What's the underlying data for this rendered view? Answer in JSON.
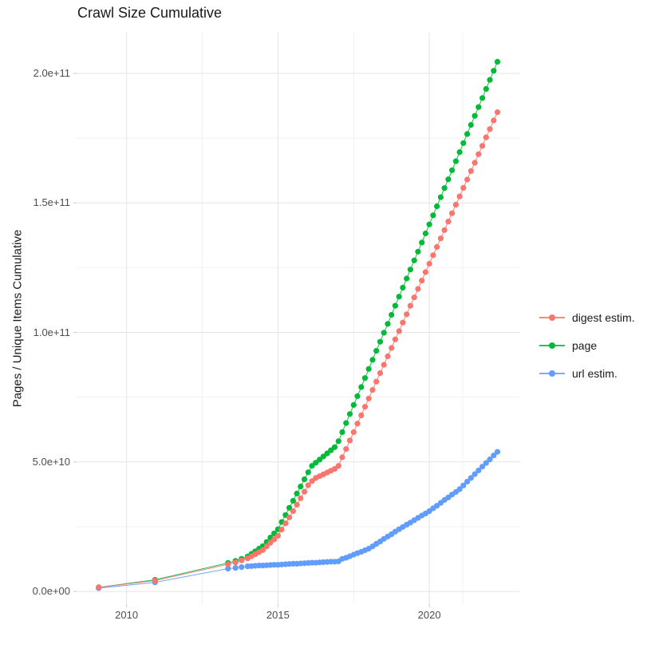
{
  "title": "Crawl Size Cumulative",
  "y_axis_title": "Pages / Unique Items Cumulative",
  "chart_data": {
    "type": "line",
    "note": "cumulative crawl size; y values stored in billions (1e9 items)",
    "y_unit_multiplier": 1000000000,
    "x": [
      2009.08,
      2010.94,
      2013.35,
      2013.6,
      2013.8,
      2014,
      2014.125,
      2014.25,
      2014.375,
      2014.5,
      2014.625,
      2014.75,
      2014.875,
      2015,
      2015.125,
      2015.25,
      2015.375,
      2015.5,
      2015.625,
      2015.75,
      2015.875,
      2016,
      2016.125,
      2016.25,
      2016.375,
      2016.5,
      2016.625,
      2016.75,
      2016.875,
      2017,
      2017.125,
      2017.25,
      2017.375,
      2017.5,
      2017.625,
      2017.75,
      2017.875,
      2018,
      2018.125,
      2018.25,
      2018.375,
      2018.5,
      2018.625,
      2018.75,
      2018.875,
      2019,
      2019.125,
      2019.25,
      2019.375,
      2019.5,
      2019.625,
      2019.75,
      2019.875,
      2020,
      2020.125,
      2020.25,
      2020.375,
      2020.5,
      2020.625,
      2020.75,
      2020.875,
      2021,
      2021.125,
      2021.25,
      2021.375,
      2021.5,
      2021.625,
      2021.75,
      2021.875,
      2022,
      2022.125,
      2022.25
    ],
    "series": [
      {
        "name": "digest estim.",
        "color": "#F8766D",
        "values": [
          1.6,
          4.2,
          10.5,
          11.2,
          12,
          12.8,
          13.6,
          14.4,
          15.2,
          16,
          17.4,
          18.8,
          20.1,
          21.5,
          23.9,
          26.3,
          28.6,
          31,
          33.5,
          36,
          38.5,
          41,
          42.6,
          43.8,
          44.5,
          45.2,
          45.9,
          46.6,
          47.3,
          48.5,
          51.8,
          55,
          58.3,
          61.5,
          64.8,
          68,
          71.3,
          74.5,
          77.8,
          81,
          84.3,
          87.5,
          90.8,
          94,
          97.3,
          100.5,
          103.8,
          107,
          110.3,
          113.5,
          116.8,
          120,
          123.3,
          126.5,
          129.8,
          133,
          136.3,
          139.5,
          142.8,
          146,
          149.3,
          152.5,
          155.8,
          159,
          162.3,
          165.5,
          168.8,
          172,
          175.3,
          178.5,
          181.8,
          185
        ]
      },
      {
        "name": "page",
        "color": "#00BA38",
        "values": [
          1.6,
          4.5,
          11,
          11.8,
          12.6,
          13.5,
          14.5,
          15.5,
          16.5,
          17.5,
          19.1,
          20.8,
          22.4,
          24,
          26.8,
          29.5,
          32.3,
          35,
          37.8,
          40.5,
          43.3,
          46,
          48.5,
          49.7,
          50.9,
          52.1,
          53.3,
          54.5,
          55.7,
          58,
          61.5,
          65,
          68.5,
          72,
          75.4,
          78.9,
          82.4,
          85.9,
          89.4,
          92.9,
          96.4,
          99.9,
          103.3,
          106.8,
          110.3,
          113.8,
          117.3,
          120.8,
          124.3,
          127.8,
          131.2,
          134.7,
          138.2,
          141.7,
          145.2,
          148.7,
          152.2,
          155.7,
          159.1,
          162.6,
          166.1,
          169.6,
          173.1,
          176.6,
          180.1,
          183.6,
          187,
          190.5,
          194,
          197.5,
          201,
          204.5
        ]
      },
      {
        "name": "url estim.",
        "color": "#619CFF",
        "values": [
          1.3,
          3.5,
          8.8,
          9.1,
          9.4,
          9.7,
          9.8,
          9.9,
          10,
          10,
          10.1,
          10.2,
          10.3,
          10.3,
          10.4,
          10.5,
          10.6,
          10.7,
          10.7,
          10.8,
          10.9,
          11,
          11.1,
          11.1,
          11.2,
          11.3,
          11.4,
          11.5,
          11.5,
          11.6,
          12.6,
          13,
          13.6,
          14.2,
          14.8,
          15.3,
          15.9,
          16.5,
          17.4,
          18.4,
          19.3,
          20.3,
          21.2,
          22.1,
          23.1,
          24,
          24.9,
          25.8,
          26.6,
          27.5,
          28.4,
          29.3,
          30.1,
          31,
          32.1,
          33.1,
          34.2,
          35.3,
          36.3,
          37.4,
          38.4,
          39.5,
          40.9,
          42.4,
          43.8,
          45.3,
          46.7,
          48.2,
          49.6,
          51,
          52.5,
          53.9
        ]
      }
    ],
    "x_ticks": [
      {
        "value": 2010,
        "label": "2010"
      },
      {
        "value": 2015,
        "label": "2015"
      },
      {
        "value": 2020,
        "label": "2020"
      }
    ],
    "x_minor_ticks": [
      2012.5,
      2017.5,
      2021.1
    ],
    "y_ticks": [
      {
        "value": 0,
        "label": "0.0e+00"
      },
      {
        "value": 50,
        "label": "5.0e+10"
      },
      {
        "value": 100,
        "label": "1.0e+11"
      },
      {
        "value": 150,
        "label": "1.5e+11"
      },
      {
        "value": 200,
        "label": "2.0e+11"
      }
    ],
    "y_minor_ticks": [
      25,
      75,
      125,
      175
    ],
    "xlim": [
      2008.35,
      2023.0
    ],
    "ylim": [
      -4.9,
      215.7
    ],
    "grid": true,
    "legend_position": "right",
    "draw_order": [
      "page",
      "url estim.",
      "digest estim."
    ]
  },
  "colors": {
    "background": "#ffffff",
    "grid_major": "#e4e4e4",
    "grid_minor": "#f2f2f2",
    "tick_mark": "#c9c9c9",
    "tick_text": "#4d4d4d",
    "text": "#1a1a1a"
  }
}
